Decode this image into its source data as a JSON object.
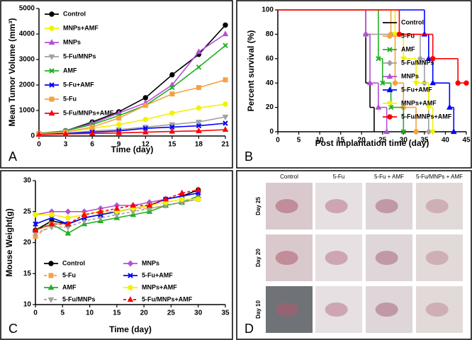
{
  "chart_data": [
    {
      "type": "line",
      "panel_label": "A",
      "x_label": "Time (day)",
      "y_label": "Mean Tumor Volume (mm³)",
      "x": [
        0,
        3,
        6,
        9,
        12,
        15,
        18,
        21
      ],
      "xlim": [
        0,
        21
      ],
      "xticks": [
        0,
        3,
        6,
        9,
        12,
        15,
        18,
        21
      ],
      "ylim": [
        0,
        5000
      ],
      "yticks": [
        0,
        1000,
        2000,
        3000,
        4000,
        5000
      ],
      "legend": "upper left",
      "series": [
        {
          "name": "Control",
          "color": "#000000",
          "marker": "circle",
          "values": [
            100,
            200,
            550,
            950,
            1500,
            2400,
            3200,
            4350
          ]
        },
        {
          "name": "MNPs+AMF",
          "color": "#f2f200",
          "marker": "circle",
          "values": [
            80,
            150,
            300,
            450,
            650,
            900,
            1100,
            1250
          ]
        },
        {
          "name": "MNPs",
          "color": "#b44fd6",
          "marker": "triangle",
          "values": [
            90,
            200,
            500,
            900,
            1300,
            2000,
            3300,
            4000
          ]
        },
        {
          "name": "5-Fu/MNPs",
          "color": "#a0a0a0",
          "marker": "triangle-down",
          "values": [
            70,
            100,
            200,
            250,
            350,
            450,
            550,
            750
          ]
        },
        {
          "name": "AMF",
          "color": "#22b022",
          "marker": "x",
          "values": [
            90,
            200,
            450,
            800,
            1200,
            1900,
            2700,
            3550
          ]
        },
        {
          "name": "5-Fu+AMF",
          "color": "#0000ff",
          "marker": "x",
          "values": [
            70,
            100,
            150,
            200,
            300,
            350,
            400,
            500
          ]
        },
        {
          "name": "5-Fu",
          "color": "#f5a142",
          "marker": "square",
          "values": [
            90,
            150,
            350,
            700,
            1200,
            1650,
            1900,
            2200
          ]
        },
        {
          "name": "5-Fu/MNPs+AMF",
          "color": "#ff0000",
          "marker": "triangle",
          "values": [
            60,
            80,
            100,
            120,
            150,
            180,
            200,
            250
          ]
        }
      ]
    },
    {
      "type": "step",
      "panel_label": "B",
      "x_label": "Post implantation time (day)",
      "y_label": "Percent survival (%)",
      "xlim": [
        0,
        45
      ],
      "xticks": [
        0,
        5,
        10,
        15,
        20,
        25,
        30,
        35,
        40,
        45
      ],
      "ylim": [
        0,
        100
      ],
      "yticks": [
        0,
        20,
        40,
        60,
        80,
        100
      ],
      "legend": "center right",
      "series": [
        {
          "name": "Control",
          "color": "#000000",
          "marker": "none",
          "x": [
            0,
            21,
            22,
            23
          ],
          "values": [
            100,
            40,
            20,
            0
          ]
        },
        {
          "name": "5-Fu",
          "color": "#f5a142",
          "marker": "circle",
          "x": [
            0,
            27,
            28,
            30,
            33
          ],
          "values": [
            100,
            80,
            40,
            20,
            0
          ]
        },
        {
          "name": "AMF",
          "color": "#22b022",
          "marker": "x",
          "x": [
            0,
            24,
            25,
            27,
            30
          ],
          "values": [
            100,
            60,
            40,
            20,
            0
          ]
        },
        {
          "name": "5-Fu/MNPs",
          "color": "#a0a0a0",
          "marker": "diamond",
          "x": [
            0,
            21,
            34,
            35,
            36
          ],
          "values": [
            100,
            80,
            60,
            40,
            0
          ]
        },
        {
          "name": "MNPs",
          "color": "#b44fd6",
          "marker": "triangle",
          "x": [
            0,
            21,
            22,
            24,
            26
          ],
          "values": [
            100,
            80,
            40,
            20,
            0
          ]
        },
        {
          "name": "5-Fu+AMF",
          "color": "#0000ff",
          "marker": "triangle",
          "x": [
            0,
            35,
            36,
            37,
            41,
            42
          ],
          "values": [
            100,
            80,
            60,
            40,
            20,
            0
          ]
        },
        {
          "name": "MNPs+AMF",
          "color": "#f2f200",
          "marker": "triangle-down",
          "x": [
            0,
            28,
            30,
            33,
            36,
            37
          ],
          "values": [
            100,
            80,
            60,
            40,
            20,
            0
          ]
        },
        {
          "name": "5-Fu/MNPs+AMF",
          "color": "#ff0000",
          "marker": "circle",
          "x": [
            0,
            29,
            37,
            43,
            45
          ],
          "values": [
            100,
            80,
            60,
            40,
            40
          ]
        }
      ]
    },
    {
      "type": "line",
      "panel_label": "C",
      "x_label": "Time (day)",
      "y_label": "Mouse Weight(g)",
      "x": [
        0,
        3,
        6,
        9,
        12,
        15,
        18,
        21,
        24,
        27,
        30
      ],
      "xlim": [
        0,
        35
      ],
      "xticks": [
        0,
        5,
        10,
        15,
        20,
        25,
        30,
        35
      ],
      "ylim": [
        10,
        30
      ],
      "yticks": [
        10,
        15,
        20,
        25,
        30
      ],
      "legend": "lower center",
      "series": [
        {
          "name": "Control",
          "color": "#000000",
          "marker": "circle",
          "dash": false,
          "values": [
            22,
            23.5,
            23,
            24,
            24.5,
            25,
            25.5,
            26,
            27,
            27.5,
            28.5
          ]
        },
        {
          "name": "5-Fu",
          "color": "#f5a142",
          "marker": "square",
          "dash": true,
          "values": [
            21,
            23,
            23,
            24,
            24.5,
            25,
            25.5,
            25.5,
            26,
            26.5,
            27
          ]
        },
        {
          "name": "AMF",
          "color": "#22b022",
          "marker": "triangle",
          "dash": false,
          "values": [
            22,
            23,
            21.5,
            23,
            23.5,
            24,
            24.5,
            25,
            26,
            26.5,
            27.5
          ]
        },
        {
          "name": "5-Fu/MNPs",
          "color": "#a0a0a0",
          "marker": "triangle-down",
          "dash": true,
          "values": [
            21.5,
            22.5,
            22.5,
            23.5,
            24,
            24.5,
            25,
            25.5,
            26,
            26.5,
            27
          ]
        },
        {
          "name": "MNPs",
          "color": "#b44fd6",
          "marker": "diamond",
          "dash": false,
          "values": [
            24.5,
            25,
            25,
            25,
            25.5,
            26,
            26,
            26.5,
            27,
            27.5,
            28
          ]
        },
        {
          "name": "5-Fu+AMF",
          "color": "#0000ff",
          "marker": "x",
          "dash": false,
          "values": [
            23,
            24,
            23,
            24,
            24.5,
            25,
            25.5,
            26,
            27,
            27.5,
            28
          ]
        },
        {
          "name": "MNPs+AMF",
          "color": "#f2f200",
          "marker": "circle",
          "dash": false,
          "values": [
            24.5,
            24.5,
            24,
            24.5,
            25,
            25,
            25.5,
            26,
            26.5,
            27,
            27
          ]
        },
        {
          "name": "5-Fu/MNPs+AMF",
          "color": "#ff0000",
          "marker": "triangle",
          "dash": true,
          "values": [
            22,
            23,
            23,
            24.5,
            25,
            25.5,
            26,
            26,
            27,
            28,
            28.5
          ]
        }
      ]
    }
  ],
  "photo_panel": {
    "panel_label": "D",
    "columns": [
      "Control",
      "5-Fu",
      "5-Fu + AMF",
      "5-Fu/MNPs + AMF"
    ],
    "rows": [
      "Day 25",
      "Day 20",
      "Day 10"
    ]
  }
}
